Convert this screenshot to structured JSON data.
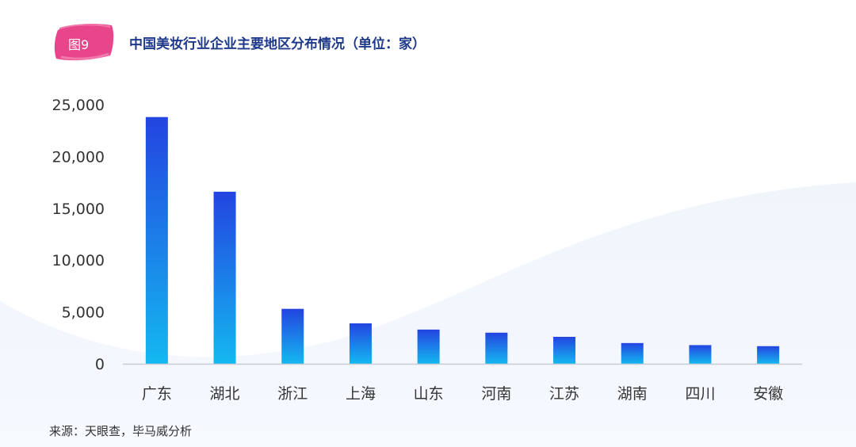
{
  "header": {
    "badge": "图9",
    "title": "中国美妆行业企业主要地区分布情况（单位：家）"
  },
  "footer": {
    "source": "来源：天眼查，毕马威分析"
  },
  "colors": {
    "title": "#1f3a8a",
    "badge": "#e8458b",
    "bar_top": "#2344e0",
    "bar_bottom": "#14b8f0",
    "axis": "#c8ccd4"
  },
  "chart_data": {
    "type": "bar",
    "title": "中国美妆行业企业主要地区分布情况（单位：家）",
    "categories": [
      "广东",
      "湖北",
      "浙江",
      "上海",
      "山东",
      "河南",
      "江苏",
      "湖南",
      "四川",
      "安徽"
    ],
    "values": [
      23800,
      16600,
      5300,
      3900,
      3300,
      3000,
      2600,
      2000,
      1800,
      1700
    ],
    "yticks": [
      "0",
      "5,000",
      "10,000",
      "15,000",
      "20,000",
      "25,000"
    ],
    "ylim": [
      0,
      25000
    ],
    "xlabel": "",
    "ylabel": "",
    "grid": false,
    "legend": "none"
  }
}
